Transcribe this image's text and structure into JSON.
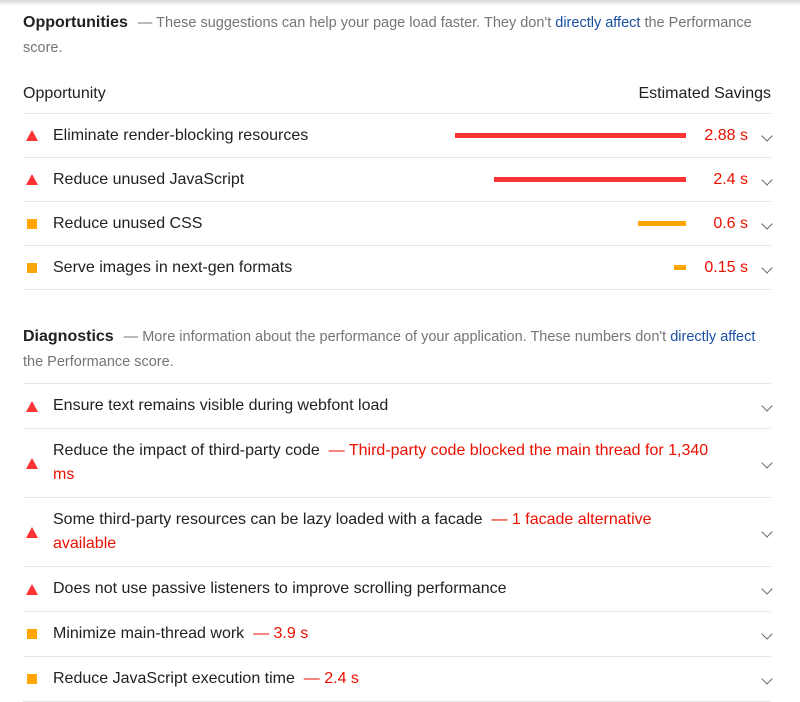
{
  "opportunities": {
    "title": "Opportunities",
    "description_pre": "— These suggestions can help your page load faster. They don't ",
    "description_link": "directly affect",
    "description_post": " the Performance score.",
    "col_left": "Opportunity",
    "col_right": "Estimated Savings",
    "items": [
      {
        "label": "Eliminate render-blocking resources",
        "severity": "fail",
        "savings": "2.88 s",
        "savings_value": 2.88
      },
      {
        "label": "Reduce unused JavaScript",
        "severity": "fail",
        "savings": "2.4 s",
        "savings_value": 2.4
      },
      {
        "label": "Reduce unused CSS",
        "severity": "average",
        "savings": "0.6 s",
        "savings_value": 0.6
      },
      {
        "label": "Serve images in next-gen formats",
        "severity": "average",
        "savings": "0.15 s",
        "savings_value": 0.15
      }
    ]
  },
  "diagnostics": {
    "title": "Diagnostics",
    "description_pre": "— More information about the performance of your application. These numbers don't ",
    "description_link": "directly affect",
    "description_post": " the Performance score.",
    "items": [
      {
        "label": "Ensure text remains visible during webfont load",
        "severity": "fail",
        "detail": ""
      },
      {
        "label": "Reduce the impact of third-party code",
        "severity": "fail",
        "detail": "— Third-party code blocked the main thread for 1,340 ms"
      },
      {
        "label": "Some third-party resources can be lazy loaded with a facade",
        "severity": "fail",
        "detail": "— 1 facade alternative available"
      },
      {
        "label": "Does not use passive listeners to improve scrolling performance",
        "severity": "fail",
        "detail": ""
      },
      {
        "label": "Minimize main-thread work",
        "severity": "average",
        "detail": "— 3.9 s"
      },
      {
        "label": "Reduce JavaScript execution time",
        "severity": "average",
        "detail": "— 2.4 s"
      }
    ]
  },
  "colors": {
    "fail": "#ff3333",
    "average": "#ffa400",
    "value_text": "#eb0f00",
    "link": "#1a4fa0"
  }
}
